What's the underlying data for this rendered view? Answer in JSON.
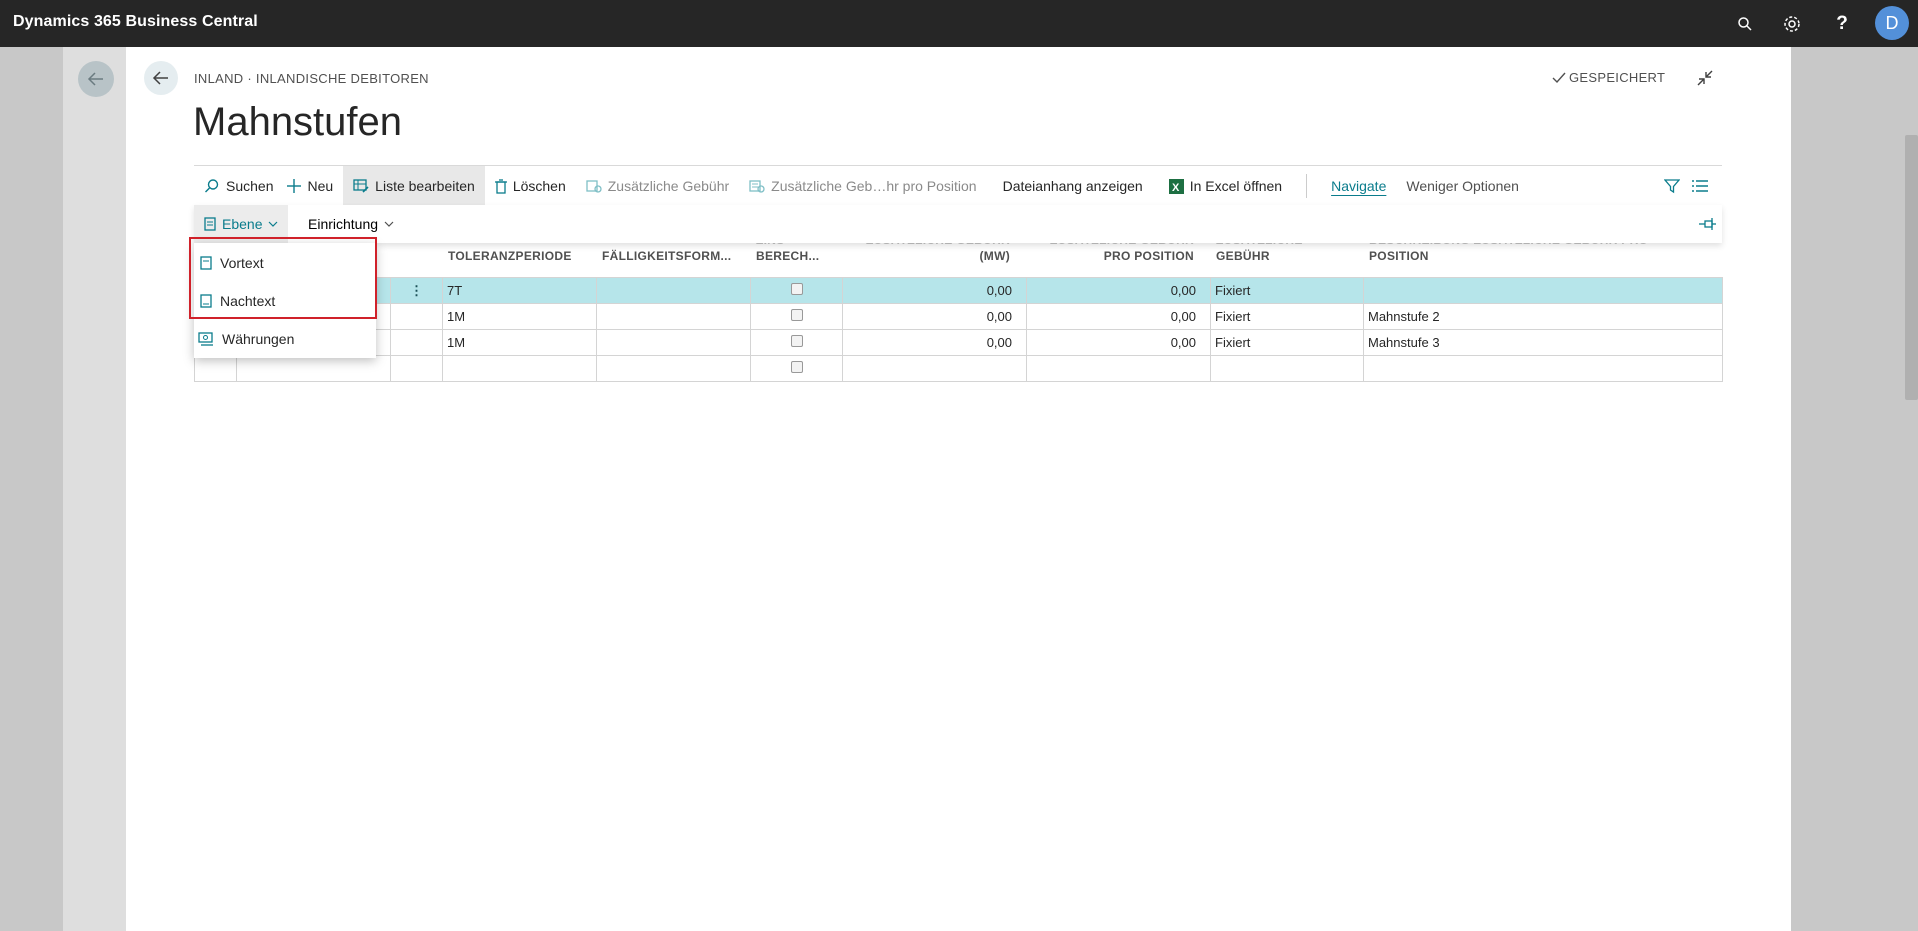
{
  "topbar": {
    "app_title": "Dynamics 365 Business Central",
    "avatar_initial": "D",
    "help_label": "?"
  },
  "header": {
    "breadcrumb": "INLAND · INLANDISCHE DEBITOREN",
    "saved_status": "GESPEICHERT",
    "page_title": "Mahnstufen"
  },
  "actions": {
    "search": "Suchen",
    "new": "Neu",
    "edit_list": "Liste bearbeiten",
    "delete": "Löschen",
    "extra_fee": "Zusätzliche Gebühr",
    "extra_fee_per_line": "Zusätzliche Geb…hr pro Position",
    "show_attachment": "Dateianhang anzeigen",
    "open_excel": "In Excel öffnen",
    "navigate": "Navigate",
    "fewer_options": "Weniger Optionen"
  },
  "subbar": {
    "level": "Ebene",
    "setup": "Einrichtung"
  },
  "dropdown": {
    "items": [
      "Vortext",
      "Nachtext",
      "Währungen"
    ]
  },
  "columns": {
    "tolerance": "TOLERANZPERIODE",
    "due_formula": "FÄLLIGKEITSFORM...",
    "interest_top": "ZINS",
    "interest": "BERECH...",
    "extra_fee_top": "ZUSÄTZLICHE GEBÜHR",
    "extra_fee": "(MW)",
    "per_line_top": "ZUSÄTZLICHE GEBÜHR",
    "per_line": "PRO POSITION",
    "fee_type_top": "ZUSÄTZLICHE",
    "fee_type": "GEBÜHR",
    "description_top": "BESCHREIBUNG ZUSÄTZLICHE GEBÜHR PRO",
    "description": "POSITION"
  },
  "rows": [
    {
      "tolerance": "7T",
      "due_formula": "",
      "extra_fee": "0,00",
      "per_line": "0,00",
      "fee_type": "Fixiert",
      "description": ""
    },
    {
      "tolerance": "1M",
      "due_formula": "",
      "extra_fee": "0,00",
      "per_line": "0,00",
      "fee_type": "Fixiert",
      "description": "Mahnstufe 2"
    },
    {
      "tolerance": "1M",
      "due_formula": "",
      "extra_fee": "0,00",
      "per_line": "0,00",
      "fee_type": "Fixiert",
      "description": "Mahnstufe 3"
    },
    {
      "tolerance": "",
      "due_formula": "",
      "extra_fee": "",
      "per_line": "",
      "fee_type": "",
      "description": ""
    }
  ],
  "row_menu_glyph": "⋮",
  "colors": {
    "topbar": "#262626",
    "accent": "#0a7c8c",
    "selected_row": "#b6e5ea",
    "highlight": "#d0212a"
  }
}
